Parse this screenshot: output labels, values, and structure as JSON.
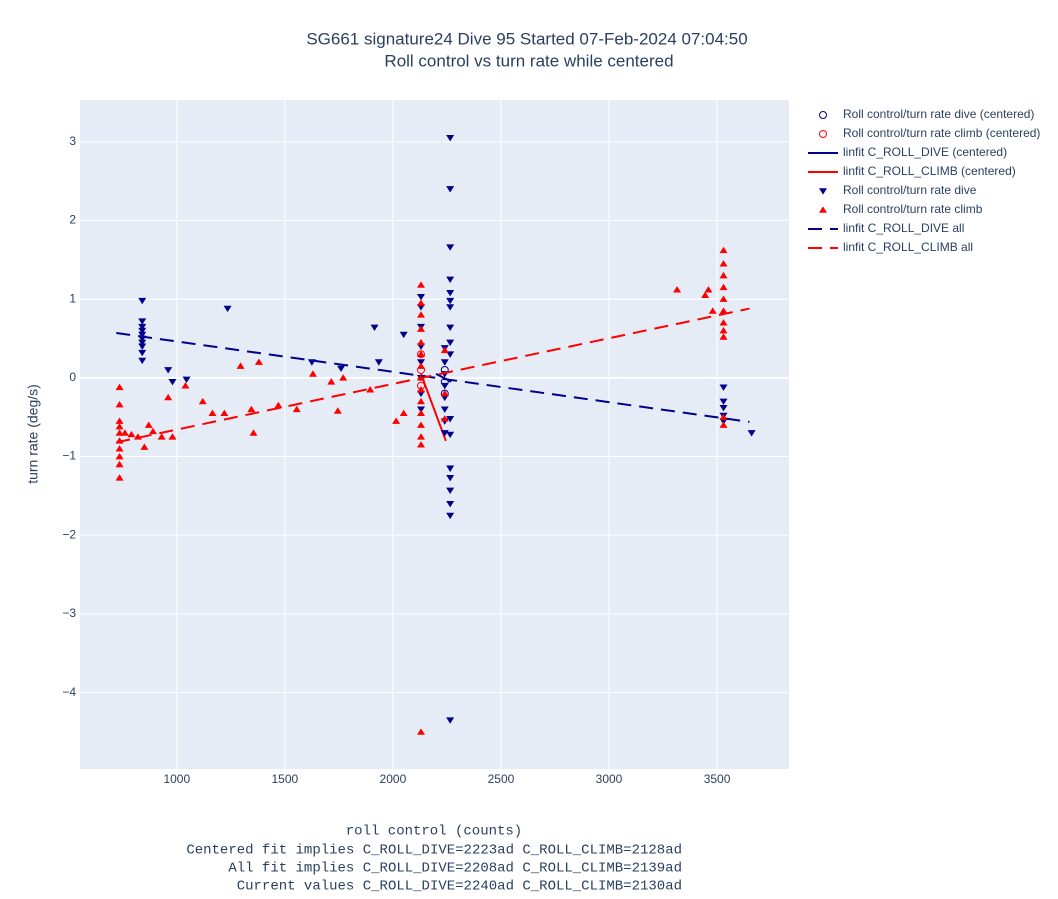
{
  "chart_data": {
    "type": "scatter",
    "title": "SG661 signature24 Dive 95 Started 07-Feb-2024 07:04:50",
    "subtitle": "Roll control vs turn rate while centered",
    "xlabel": "roll control (counts)",
    "annotations": [
      "Centered fit implies C_ROLL_DIVE=2223ad C_ROLL_CLIMB=2128ad",
      "All fit implies C_ROLL_DIVE=2208ad C_ROLL_CLIMB=2139ad",
      "Current values C_ROLL_DIVE=2240ad C_ROLL_CLIMB=2130ad"
    ],
    "ylabel": "turn rate (deg/s)",
    "xlim": [
      552,
      3833
    ],
    "ylim": [
      -4.97,
      3.53
    ],
    "xticks": [
      1000,
      1500,
      2000,
      2500,
      3000,
      3500
    ],
    "yticks": [
      {
        "value": -4,
        "label": "−4"
      },
      {
        "value": -3,
        "label": "−3"
      },
      {
        "value": -2,
        "label": "−2"
      },
      {
        "value": -1,
        "label": "−1"
      },
      0,
      1,
      2,
      3
    ],
    "grid": true,
    "legend": "right",
    "series": [
      {
        "name": "Roll control/turn rate dive (centered)",
        "color": "#00008b",
        "mode": "markers",
        "symbol": "circle-open",
        "x": [
          2240,
          2240,
          2240
        ],
        "values": [
          0.1,
          -0.05,
          -0.2
        ]
      },
      {
        "name": "Roll control/turn rate climb (centered)",
        "color": "#ff0000",
        "mode": "markers",
        "symbol": "circle-open",
        "x": [
          2130,
          2130,
          2130
        ],
        "values": [
          0.3,
          0.1,
          -0.1
        ]
      },
      {
        "name": "linfit C_ROLL_DIVE (centered)",
        "color": "#00008b",
        "mode": "lines",
        "dash": "solid",
        "x": [
          2200,
          2270
        ],
        "values": [
          0.05,
          -0.05
        ]
      },
      {
        "name": "linfit C_ROLL_CLIMB (centered)",
        "color": "#ff0000",
        "mode": "lines",
        "dash": "solid",
        "x": [
          2130,
          2245
        ],
        "values": [
          0.05,
          -0.8
        ]
      },
      {
        "name": "Roll control/turn rate dive",
        "color": "#00008b",
        "mode": "markers",
        "symbol": "triangle-down",
        "x": [
          840,
          840,
          840,
          840,
          840,
          840,
          840,
          840,
          840,
          840,
          960,
          980,
          1045,
          1235,
          1625,
          1760,
          1915,
          1935,
          2050,
          2130,
          2130,
          2130,
          2130,
          2130,
          2130,
          2130,
          2130,
          2240,
          2240,
          2240,
          2240,
          2240,
          2240,
          2240,
          2240,
          2265,
          2265,
          2265,
          2265,
          2265,
          2265,
          2265,
          2265,
          2265,
          2265,
          2265,
          2265,
          2265,
          2265,
          2265,
          2265,
          2265,
          2265,
          3530,
          3530,
          3530,
          3530,
          3530,
          3660
        ],
        "values": [
          0.98,
          0.72,
          0.65,
          0.6,
          0.55,
          0.5,
          0.45,
          0.4,
          0.32,
          0.22,
          0.1,
          -0.05,
          -0.02,
          0.88,
          0.2,
          0.12,
          0.64,
          0.2,
          0.55,
          1.03,
          0.9,
          0.65,
          0.4,
          0.2,
          0.0,
          -0.2,
          -0.4,
          0.38,
          0.2,
          0.05,
          -0.1,
          -0.25,
          -0.4,
          -0.55,
          -0.7,
          3.05,
          2.4,
          1.66,
          1.25,
          1.08,
          0.98,
          0.9,
          0.64,
          0.45,
          0.3,
          -0.52,
          -0.72,
          -1.15,
          -1.27,
          -1.43,
          -1.6,
          -1.75,
          -4.35,
          -0.12,
          -0.3,
          -0.38,
          -0.48,
          -0.55,
          -0.7
        ]
      },
      {
        "name": "Roll control/turn rate climb",
        "color": "#ff0000",
        "mode": "markers",
        "symbol": "triangle-up",
        "x": [
          735,
          735,
          735,
          735,
          735,
          735,
          735,
          735,
          735,
          735,
          760,
          790,
          820,
          850,
          870,
          890,
          930,
          960,
          980,
          1040,
          1120,
          1165,
          1220,
          1295,
          1345,
          1355,
          1380,
          1470,
          1555,
          1630,
          1715,
          1745,
          1770,
          1895,
          2015,
          2050,
          2130,
          2130,
          2130,
          2130,
          2130,
          2130,
          2130,
          2130,
          2130,
          2130,
          2130,
          2130,
          2130,
          2130,
          2130,
          2240,
          2240,
          2240,
          3315,
          3445,
          3460,
          3480,
          3530,
          3530,
          3530,
          3530,
          3530,
          3530,
          3530,
          3530,
          3530,
          3530,
          3530
        ],
        "values": [
          -0.12,
          -0.34,
          -0.55,
          -0.62,
          -0.7,
          -0.8,
          -0.9,
          -1.0,
          -1.1,
          -1.27,
          -0.7,
          -0.72,
          -0.75,
          -0.88,
          -0.6,
          -0.68,
          -0.75,
          -0.25,
          -0.75,
          -0.1,
          -0.3,
          -0.45,
          -0.45,
          0.15,
          -0.4,
          -0.7,
          0.2,
          -0.35,
          -0.4,
          0.05,
          -0.05,
          -0.42,
          0.0,
          -0.15,
          -0.55,
          -0.45,
          1.18,
          0.95,
          0.8,
          0.62,
          0.45,
          0.3,
          0.15,
          0.0,
          -0.15,
          -0.3,
          -0.45,
          -0.6,
          -0.75,
          -0.85,
          -4.5,
          0.35,
          -0.2,
          -0.52,
          1.12,
          1.05,
          1.12,
          0.85,
          1.62,
          1.45,
          1.3,
          1.15,
          1.0,
          0.85,
          0.7,
          0.6,
          0.52,
          -0.5,
          -0.6
        ]
      },
      {
        "name": "linfit C_ROLL_DIVE all",
        "color": "#00008b",
        "mode": "lines",
        "dash": "dash",
        "x": [
          720,
          3650
        ],
        "values": [
          0.57,
          -0.56
        ]
      },
      {
        "name": "linfit C_ROLL_CLIMB all",
        "color": "#ff0000",
        "mode": "lines",
        "dash": "dash",
        "x": [
          720,
          3650
        ],
        "values": [
          -0.82,
          0.88
        ]
      }
    ]
  }
}
